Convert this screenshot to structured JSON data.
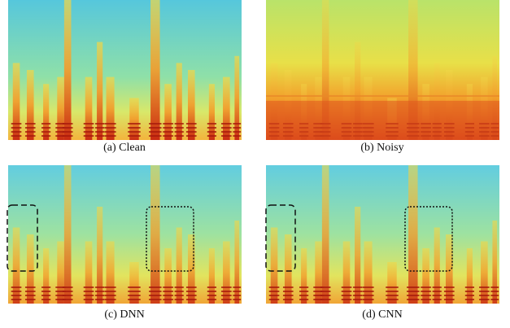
{
  "figure": {
    "panels": [
      {
        "caption": "(a) Clean"
      },
      {
        "caption": "(b) Noisy"
      },
      {
        "caption": "(c) DNN"
      },
      {
        "caption": "(d) CNN"
      }
    ]
  }
}
